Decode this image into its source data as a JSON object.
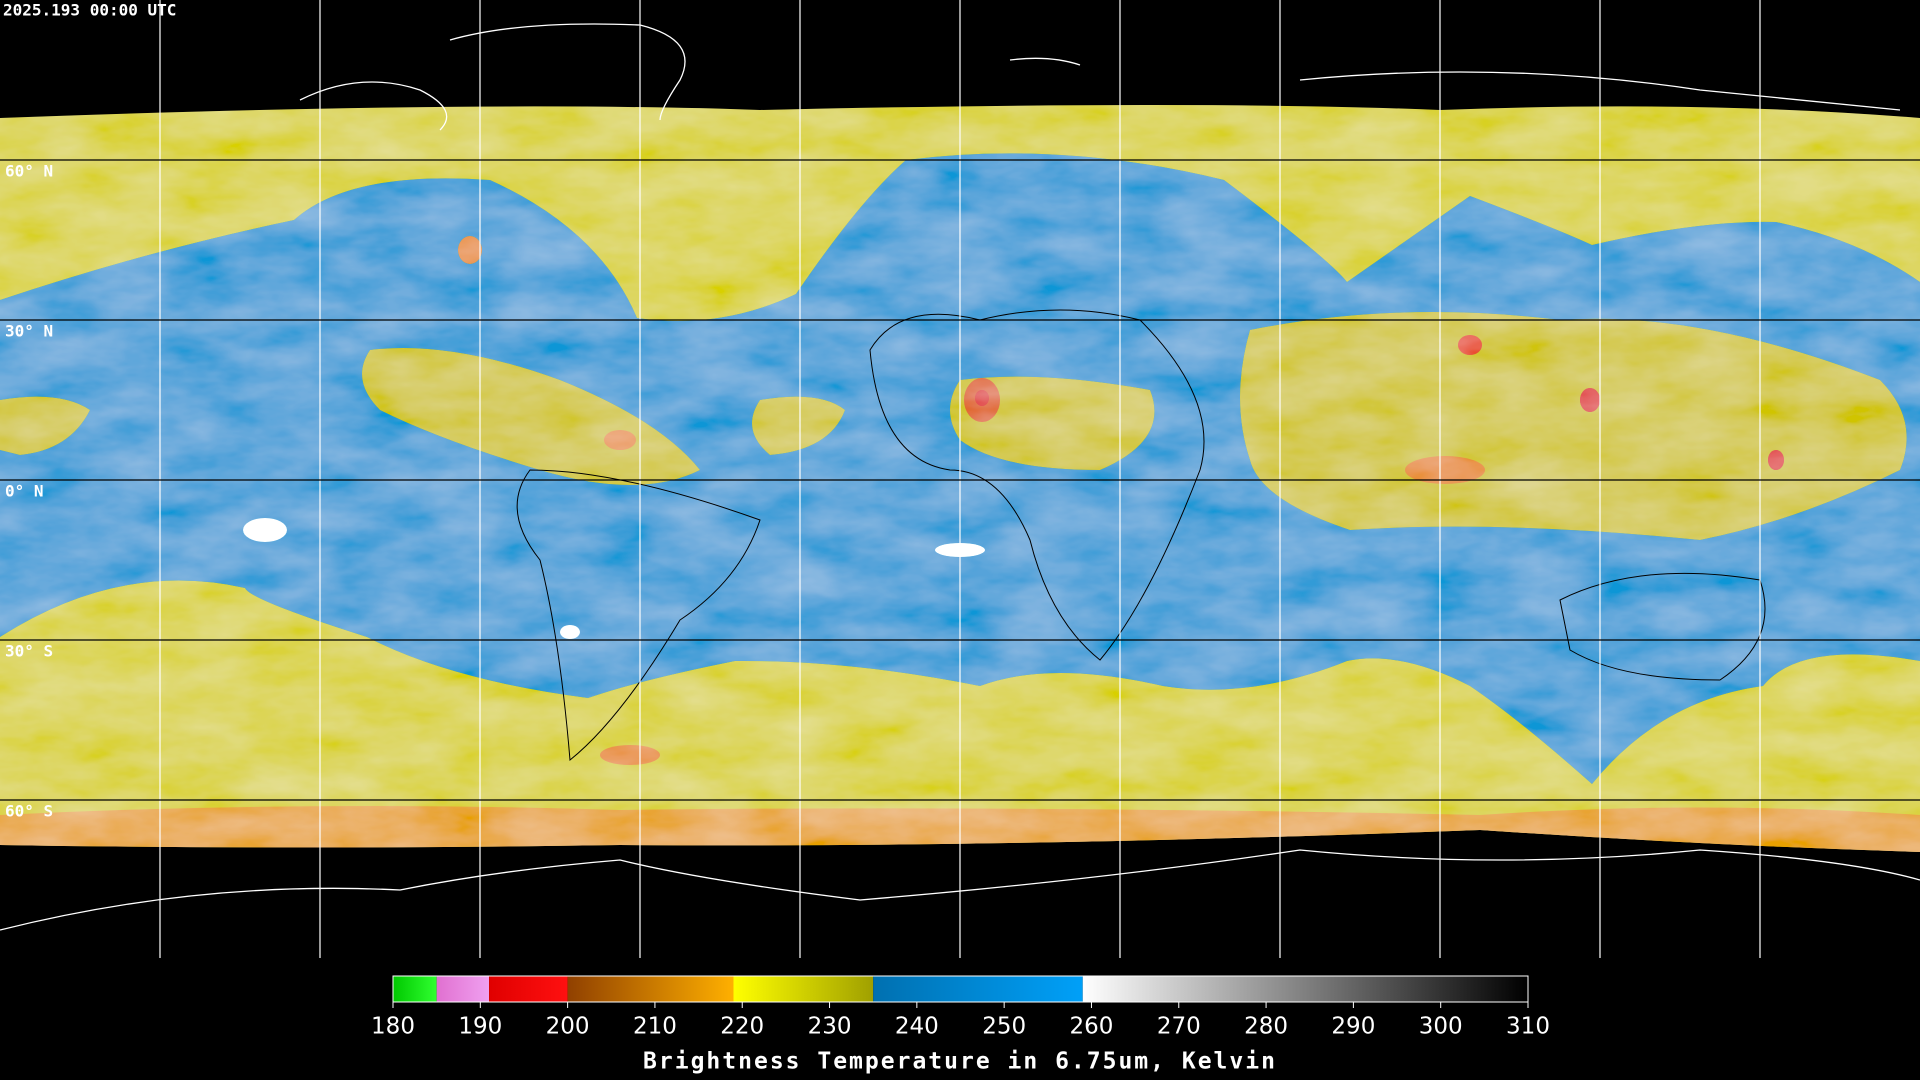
{
  "timestamp": "2025.193 00:00 UTC",
  "map": {
    "latitudes": [
      {
        "value": 60,
        "label": "60° N"
      },
      {
        "value": 30,
        "label": "30° N"
      },
      {
        "value": 0,
        "label": "0° N"
      },
      {
        "value": -30,
        "label": "30° S"
      },
      {
        "value": -60,
        "label": "60° S"
      }
    ]
  },
  "colorbar": {
    "title": "Brightness Temperature in 6.75um, Kelvin",
    "range": [
      180,
      310
    ],
    "ticks": [
      180,
      190,
      200,
      210,
      220,
      230,
      240,
      250,
      260,
      270,
      280,
      290,
      300,
      310
    ],
    "segments": [
      {
        "from": 180,
        "to": 185,
        "colors": [
          "#00c800",
          "#30ff30"
        ]
      },
      {
        "from": 185,
        "to": 191,
        "colors": [
          "#e070d0",
          "#f0a0f0"
        ]
      },
      {
        "from": 191,
        "to": 200,
        "colors": [
          "#e00000",
          "#ff1010"
        ]
      },
      {
        "from": 200,
        "to": 219,
        "colors": [
          "#904000",
          "#ffb000"
        ]
      },
      {
        "from": 219,
        "to": 235,
        "colors": [
          "#ffff00",
          "#a0a000"
        ]
      },
      {
        "from": 235,
        "to": 259,
        "colors": [
          "#0070b0",
          "#00a0f8"
        ]
      },
      {
        "from": 259,
        "to": 310,
        "colors": [
          "#ffffff",
          "#000000"
        ]
      }
    ]
  }
}
